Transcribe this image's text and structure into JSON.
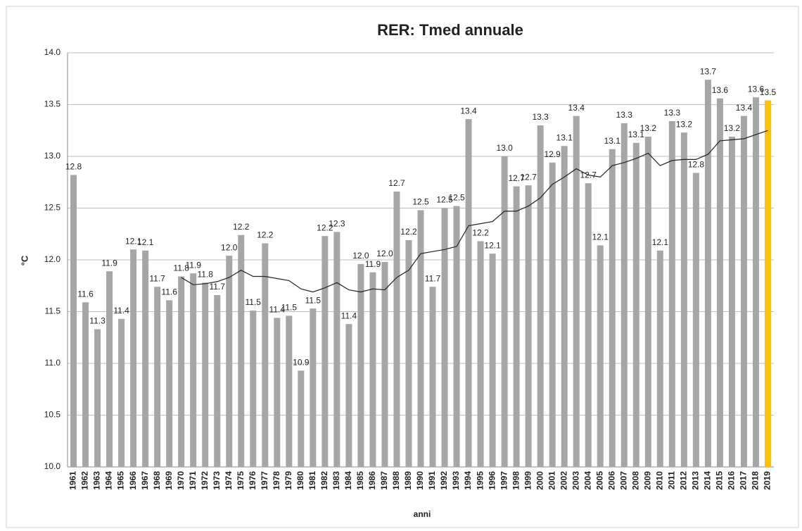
{
  "chart_data": {
    "type": "bar",
    "title": "RER: Tmed annuale",
    "x_label": "anni",
    "y_label": "°C",
    "categories": [
      "1961",
      "1962",
      "1963",
      "1964",
      "1965",
      "1966",
      "1967",
      "1968",
      "1969",
      "1970",
      "1971",
      "1972",
      "1973",
      "1974",
      "1975",
      "1976",
      "1977",
      "1978",
      "1979",
      "1980",
      "1981",
      "1982",
      "1983",
      "1984",
      "1985",
      "1986",
      "1987",
      "1988",
      "1989",
      "1990",
      "1991",
      "1992",
      "1993",
      "1994",
      "1995",
      "1996",
      "1997",
      "1998",
      "1999",
      "2000",
      "2001",
      "2002",
      "2003",
      "2004",
      "2005",
      "2006",
      "2007",
      "2008",
      "2009",
      "2010",
      "2011",
      "2012",
      "2013",
      "2014",
      "2015",
      "2016",
      "2017",
      "2018",
      "2019"
    ],
    "series": [
      {
        "type": "bar",
        "color": "#a6a6a6",
        "values": [
          12.82,
          11.59,
          11.33,
          11.89,
          11.43,
          12.1,
          12.09,
          11.74,
          11.61,
          11.84,
          11.87,
          11.78,
          11.66,
          12.04,
          12.24,
          11.51,
          12.16,
          11.44,
          11.46,
          10.93,
          11.53,
          12.23,
          12.27,
          11.38,
          11.96,
          11.88,
          11.98,
          12.66,
          12.19,
          12.48,
          11.74,
          12.5,
          12.52,
          13.36,
          12.18,
          12.06,
          13.0,
          12.71,
          12.72,
          13.3,
          12.94,
          13.1,
          13.39,
          12.74,
          12.14,
          13.07,
          13.32,
          13.13,
          13.19,
          12.09,
          13.34,
          13.23,
          12.84,
          13.74,
          13.56,
          13.19,
          13.39,
          13.57,
          13.54
        ],
        "value_labels": [
          "12.8",
          "11.6",
          "11.3",
          "11.9",
          "11.4",
          "12.1",
          "12.1",
          "11.7",
          "11.6",
          "11.8",
          "11.9",
          "11.8",
          "11.7",
          "12.0",
          "12.2",
          "11.5",
          "12.2",
          "11.4",
          "11.5",
          "10.9",
          "11.5",
          "12.2",
          "12.3",
          "11.4",
          "12.0",
          "11.9",
          "12.0",
          "12.7",
          "12.2",
          "12.5",
          "11.7",
          "12.5",
          "12.5",
          "13.4",
          "12.2",
          "12.1",
          "13.0",
          "12.7",
          "12.7",
          "13.3",
          "12.9",
          "13.1",
          "13.4",
          "12.7",
          "12.1",
          "13.1",
          "13.3",
          "13.1",
          "13.2",
          "12.1",
          "13.3",
          "13.2",
          "12.8",
          "13.7",
          "13.6",
          "13.2",
          "13.4",
          "13.6",
          "13.5"
        ],
        "highlight": {
          "category": "2019",
          "color": "#ffc000"
        }
      },
      {
        "type": "line",
        "color": "#222222",
        "values": [
          null,
          null,
          null,
          null,
          null,
          null,
          null,
          null,
          null,
          11.83,
          11.76,
          11.77,
          11.79,
          11.83,
          11.9,
          11.84,
          11.84,
          11.82,
          11.8,
          11.72,
          11.69,
          11.73,
          11.78,
          11.71,
          11.69,
          11.72,
          11.71,
          11.83,
          11.9,
          12.06,
          12.08,
          12.1,
          12.13,
          12.33,
          12.35,
          12.37,
          12.47,
          12.47,
          12.52,
          12.6,
          12.73,
          12.8,
          12.88,
          12.82,
          12.8,
          12.91,
          12.94,
          12.98,
          13.03,
          12.91,
          12.96,
          12.97,
          12.97,
          13.02,
          13.15,
          13.16,
          13.17,
          13.21,
          13.25
        ]
      }
    ],
    "ylim": [
      10,
      14
    ],
    "yticks": [
      {
        "value": 10,
        "label": "10.0"
      },
      {
        "value": 10.5,
        "label": "10.5"
      },
      {
        "value": 11,
        "label": "11.0"
      },
      {
        "value": 11.5,
        "label": "11.5"
      },
      {
        "value": 12,
        "label": "12.0"
      },
      {
        "value": 12.5,
        "label": "12.5"
      },
      {
        "value": 13,
        "label": "13.0"
      },
      {
        "value": 13.5,
        "label": "13.5"
      },
      {
        "value": 14,
        "label": "14.0"
      }
    ],
    "grid": true
  }
}
